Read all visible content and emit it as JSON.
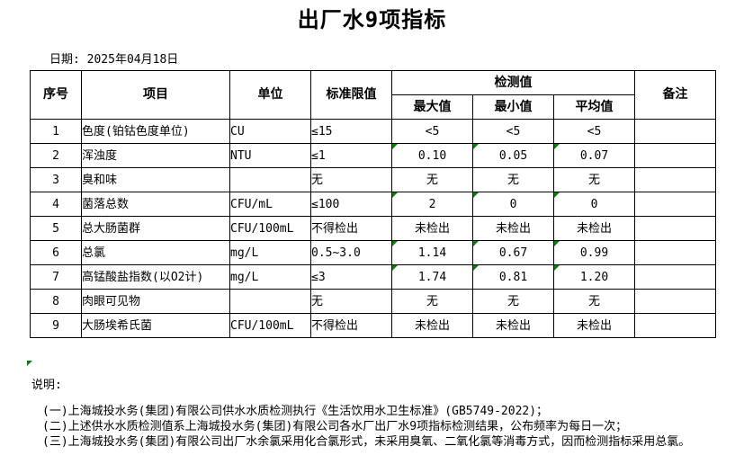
{
  "title": "出厂水9项指标",
  "date": {
    "label": "日期:",
    "value": "2025年04月18日"
  },
  "table": {
    "headers": {
      "seq": "序号",
      "item": "项目",
      "unit": "单位",
      "limit": "标准限值",
      "detection": "检测值",
      "max": "最大值",
      "min": "最小值",
      "avg": "平均值",
      "remark": "备注"
    },
    "rows": [
      {
        "seq": "1",
        "item": "色度(铂钴色度单位)",
        "unit": "CU",
        "limit": "≤15",
        "max": "<5",
        "min": "<5",
        "avg": "<5",
        "remark": "",
        "flag": false
      },
      {
        "seq": "2",
        "item": "浑浊度",
        "unit": "NTU",
        "limit": "≤1",
        "max": "0.10",
        "min": "0.05",
        "avg": "0.07",
        "remark": "",
        "flag": true
      },
      {
        "seq": "3",
        "item": "臭和味",
        "unit": "",
        "limit": "无",
        "max": "无",
        "min": "无",
        "avg": "无",
        "remark": "",
        "flag": false
      },
      {
        "seq": "4",
        "item": "菌落总数",
        "unit": "CFU/mL",
        "limit": "≤100",
        "max": "2",
        "min": "0",
        "avg": "0",
        "remark": "",
        "flag": true
      },
      {
        "seq": "5",
        "item": "总大肠菌群",
        "unit": "CFU/100mL",
        "limit": "不得检出",
        "max": "未检出",
        "min": "未检出",
        "avg": "未检出",
        "remark": "",
        "flag": false
      },
      {
        "seq": "6",
        "item": "总氯",
        "unit": "mg/L",
        "limit": "0.5~3.0",
        "max": "1.14",
        "min": "0.67",
        "avg": "0.99",
        "remark": "",
        "flag": true
      },
      {
        "seq": "7",
        "item": "高锰酸盐指数(以O2计)",
        "unit": "mg/L",
        "limit": "≤3",
        "max": "1.74",
        "min": "0.81",
        "avg": "1.20",
        "remark": "",
        "flag": true
      },
      {
        "seq": "8",
        "item": "肉眼可见物",
        "unit": "",
        "limit": "无",
        "max": "无",
        "min": "无",
        "avg": "无",
        "remark": "",
        "flag": false
      },
      {
        "seq": "9",
        "item": "大肠埃希氏菌",
        "unit": "CFU/100mL",
        "limit": "不得检出",
        "max": "未检出",
        "min": "未检出",
        "avg": "未检出",
        "remark": "",
        "flag": false
      }
    ]
  },
  "notes": {
    "label": "说明:",
    "lines": [
      "(一)上海城投水务(集团)有限公司供水水质检测执行《生活饮用水卫生标准》(GB5749-2022)；",
      "(二)上述供水水质检测值系上海城投水务(集团)有限公司各水厂出厂水9项指标检测结果，公布频率为每日一次；",
      "(三)上海城投水务(集团)有限公司出厂水余氯采用化合氯形式，未采用臭氧、二氧化氯等消毒方式，因而检测指标采用总氯。"
    ]
  },
  "colors": {
    "marker_green": "#008000",
    "border": "#000000",
    "background": "#ffffff",
    "text": "#000000"
  }
}
